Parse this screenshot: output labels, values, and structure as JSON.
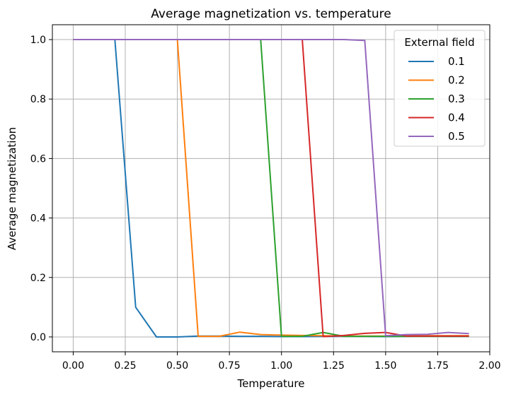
{
  "chart_data": {
    "type": "line",
    "title": "Average magnetization vs. temperature",
    "xlabel": "Temperature",
    "ylabel": "Average magnetization",
    "xlim": [
      -0.1,
      2.0
    ],
    "ylim": [
      -0.05,
      1.05
    ],
    "xticks": [
      "0.00",
      "0.25",
      "0.50",
      "0.75",
      "1.00",
      "1.25",
      "1.50",
      "1.75",
      "2.00"
    ],
    "yticks": [
      "0.0",
      "0.2",
      "0.4",
      "0.6",
      "0.8",
      "1.0"
    ],
    "grid": true,
    "legend": {
      "title": "External field",
      "placement": "top-right"
    },
    "x": [
      0.0,
      0.1,
      0.2,
      0.3,
      0.4,
      0.5,
      0.6,
      0.7,
      0.8,
      0.9,
      1.0,
      1.1,
      1.2,
      1.3,
      1.4,
      1.5,
      1.6,
      1.7,
      1.8,
      1.9
    ],
    "series": [
      {
        "name": "0.1",
        "color": "#1f77b4",
        "values": [
          1.0,
          1.0,
          1.0,
          0.1,
          0.0,
          0.0,
          0.003,
          0.003,
          0.002,
          0.002,
          0.001,
          0.001,
          0.002,
          0.002,
          0.002,
          0.001,
          0.002,
          0.003,
          0.002,
          0.002
        ]
      },
      {
        "name": "0.2",
        "color": "#ff7f0e",
        "values": [
          1.0,
          1.0,
          1.0,
          1.0,
          1.0,
          1.0,
          0.002,
          0.002,
          0.016,
          0.008,
          0.006,
          0.005,
          0.004,
          0.003,
          0.003,
          0.003,
          0.003,
          0.004,
          0.004,
          0.004
        ]
      },
      {
        "name": "0.3",
        "color": "#2ca02c",
        "values": [
          1.0,
          1.0,
          1.0,
          1.0,
          1.0,
          1.0,
          1.0,
          1.0,
          1.0,
          1.0,
          0.002,
          0.002,
          0.015,
          0.002,
          0.002,
          0.002,
          0.002,
          0.002,
          0.002,
          0.002
        ]
      },
      {
        "name": "0.4",
        "color": "#d62728",
        "values": [
          1.0,
          1.0,
          1.0,
          1.0,
          1.0,
          1.0,
          1.0,
          1.0,
          1.0,
          1.0,
          1.0,
          1.0,
          0.001,
          0.005,
          0.012,
          0.015,
          0.003,
          0.003,
          0.003,
          0.003
        ]
      },
      {
        "name": "0.5",
        "color": "#9467bd",
        "values": [
          1.0,
          1.0,
          1.0,
          1.0,
          1.0,
          1.0,
          1.0,
          1.0,
          1.0,
          1.0,
          1.0,
          1.0,
          1.0,
          1.0,
          0.997,
          0.004,
          0.008,
          0.009,
          0.015,
          0.011
        ]
      }
    ]
  }
}
